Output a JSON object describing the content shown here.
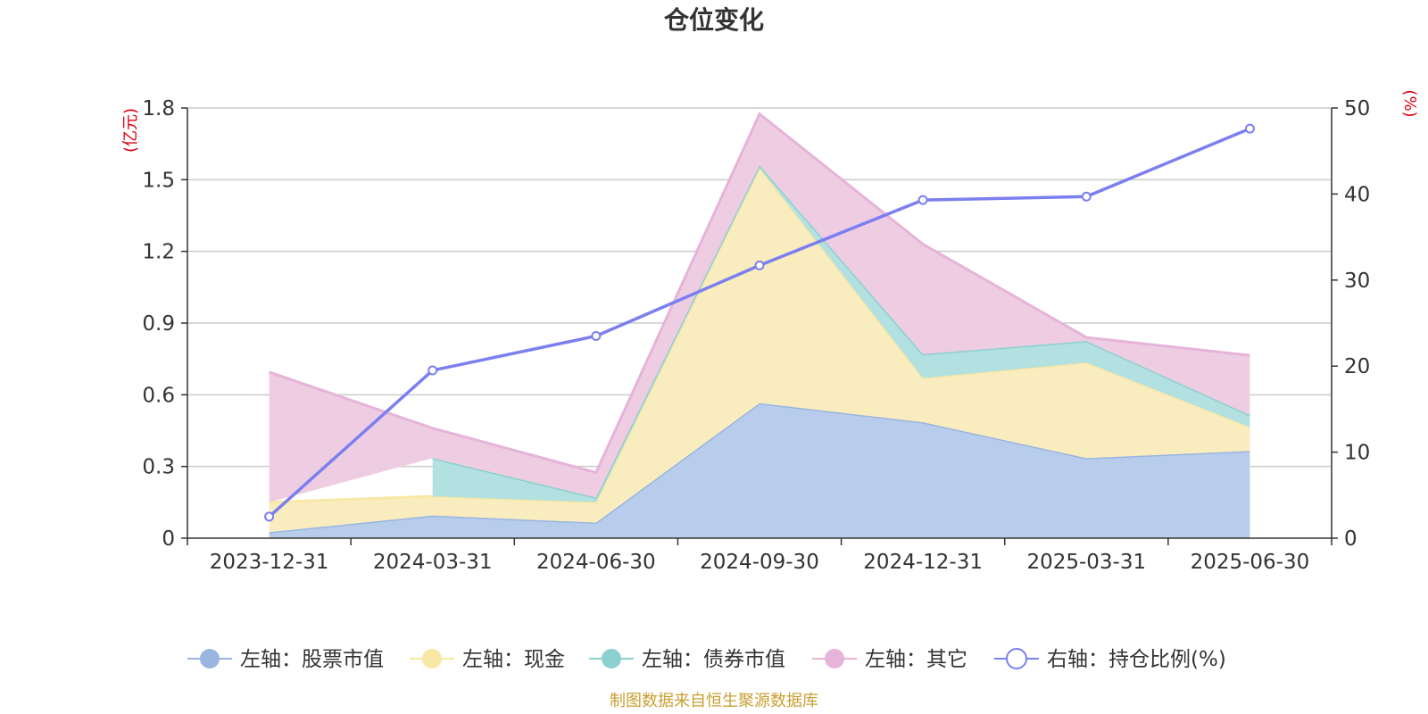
{
  "chart_data": {
    "type": "area",
    "title": "仓位变化",
    "categories": [
      "2023-12-31",
      "2024-03-31",
      "2024-06-30",
      "2024-09-30",
      "2024-12-31",
      "2025-03-31",
      "2025-06-30"
    ],
    "left_axis": {
      "unit": "(亿元)",
      "ylim": [
        0,
        1.8
      ],
      "ticks": [
        "0",
        "0.3",
        "0.6",
        "0.9",
        "1.2",
        "1.5",
        "1.8"
      ]
    },
    "right_axis": {
      "unit": "(%)",
      "ylim": [
        0,
        50
      ],
      "ticks": [
        "0",
        "10",
        "20",
        "30",
        "40",
        "50"
      ]
    },
    "stacked_series": [
      {
        "name": "左轴：股票市值",
        "color": "#9ab5e0",
        "fill": "#b8cdec",
        "values": [
          0.025,
          0.095,
          0.065,
          0.565,
          0.485,
          0.335,
          0.365
        ]
      },
      {
        "name": "左轴：现金",
        "color": "#f8e7a6",
        "fill": "#f9edbf",
        "values": [
          0.125,
          0.08,
          0.085,
          0.985,
          0.185,
          0.4,
          0.1
        ]
      },
      {
        "name": "左轴：债券市值",
        "color": "#8dd0d0",
        "fill": "#b3e0e0",
        "values": [
          null,
          0.16,
          0.02,
          0.01,
          0.1,
          0.09,
          0.05
        ]
      },
      {
        "name": "左轴：其它",
        "color": "#e6b3d9",
        "fill": "#eecde3",
        "values": [
          0.545,
          0.125,
          0.105,
          0.215,
          0.46,
          0.015,
          0.25
        ]
      }
    ],
    "line_series": {
      "name": "右轴：持仓比例(%)",
      "color": "#7b7fef",
      "values": [
        2.5,
        19.5,
        23.5,
        31.7,
        39.3,
        39.7,
        47.6
      ]
    },
    "grid": true,
    "legend_position": "bottom"
  },
  "source_note": "制图数据来自恒生聚源数据库"
}
